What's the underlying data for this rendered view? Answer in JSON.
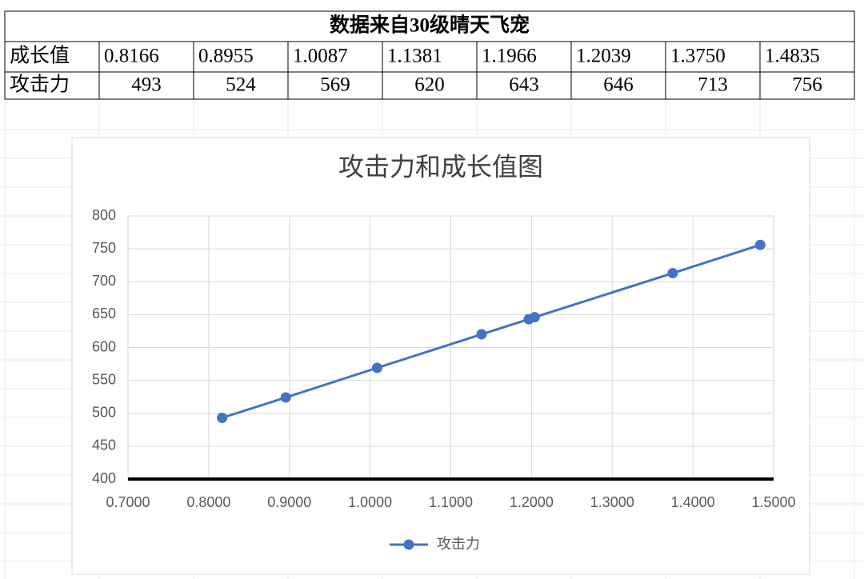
{
  "table": {
    "title": "数据来自30级晴天飞宠",
    "rows": [
      [
        "成长值",
        "0.8166",
        "0.8955",
        "1.0087",
        "1.1381",
        "1.1966",
        "1.2039",
        "1.3750",
        "1.4835"
      ],
      [
        "攻击力",
        "493",
        "524",
        "569",
        "620",
        "643",
        "646",
        "713",
        "756"
      ]
    ]
  },
  "chart_data": {
    "type": "line",
    "title": "攻击力和成长值图",
    "x": [
      0.8166,
      0.8955,
      1.0087,
      1.1381,
      1.1966,
      1.2039,
      1.375,
      1.4835
    ],
    "series": [
      {
        "name": "攻击力",
        "color": "#4472c4",
        "values": [
          493,
          524,
          569,
          620,
          643,
          646,
          713,
          756
        ]
      }
    ],
    "xlim": [
      0.7,
      1.5
    ],
    "xticks": [
      {
        "value": 0.7,
        "label": "0.7000"
      },
      {
        "value": 0.8,
        "label": "0.8000"
      },
      {
        "value": 0.9,
        "label": "0.9000"
      },
      {
        "value": 1.0,
        "label": "1.0000"
      },
      {
        "value": 1.1,
        "label": "1.1000"
      },
      {
        "value": 1.2,
        "label": "1.2000"
      },
      {
        "value": 1.3,
        "label": "1.3000"
      },
      {
        "value": 1.4,
        "label": "1.4000"
      },
      {
        "value": 1.5,
        "label": "1.5000"
      }
    ],
    "ylim": [
      400,
      800
    ],
    "yticks": [
      400,
      450,
      500,
      550,
      600,
      650,
      700,
      750,
      800
    ],
    "grid": true,
    "legend": "bottom"
  }
}
